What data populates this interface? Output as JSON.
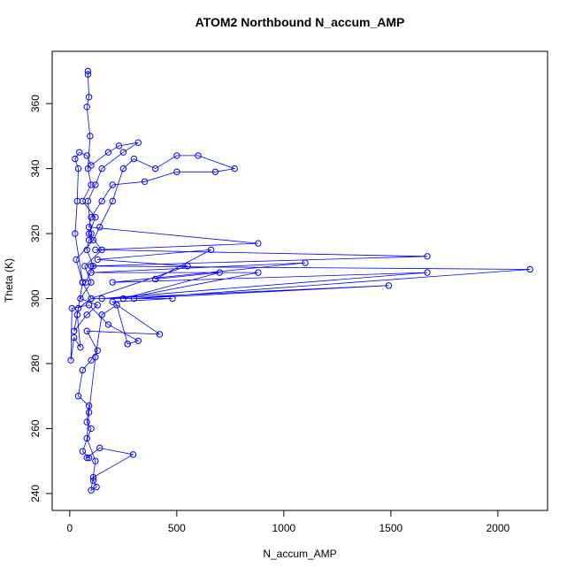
{
  "chart_data": {
    "type": "line",
    "title": "ATOM2 Northbound N_accum_AMP",
    "x_label": "N_accum_AMP",
    "y_label": "Theta (K)",
    "color": "#0000ff",
    "marker": "circle",
    "xlim": [
      -82,
      2232
    ],
    "ylim": [
      234.8,
      376.1
    ],
    "xticks": [
      0,
      500,
      1000,
      1500,
      2000
    ],
    "yticks": [
      240,
      260,
      280,
      300,
      320,
      340,
      360
    ],
    "x": [
      85,
      85,
      90,
      80,
      95,
      85,
      100,
      60,
      120,
      90,
      150,
      70,
      100,
      50,
      130,
      80,
      20,
      40,
      100,
      60,
      30,
      110,
      140,
      200,
      250,
      300,
      400,
      500,
      600,
      770,
      680,
      500,
      350,
      200,
      150,
      100,
      90,
      880,
      120,
      1670,
      100,
      2150,
      300,
      1490,
      150,
      1670,
      200,
      1100,
      100,
      880,
      250,
      700,
      400,
      660,
      130,
      550,
      100,
      480,
      200,
      420,
      80,
      130,
      100,
      60,
      40,
      90,
      80,
      100,
      60,
      90,
      80,
      140,
      296,
      110,
      110,
      125,
      100,
      120,
      80,
      90,
      120,
      150,
      220,
      270,
      270,
      320,
      180,
      90,
      10,
      5,
      20,
      50,
      35,
      60,
      25,
      35,
      40,
      25,
      45,
      80,
      100,
      180,
      230,
      320,
      250,
      150,
      120,
      85,
      100,
      90,
      80,
      110,
      75
    ],
    "values": [
      370,
      369,
      362,
      359,
      350,
      340,
      335,
      330,
      325,
      320,
      315,
      310,
      305,
      300,
      298,
      295,
      290,
      297,
      300,
      305,
      312,
      318,
      322,
      330,
      340,
      343,
      340,
      344,
      344,
      340,
      339,
      339,
      336,
      335,
      330,
      325,
      322,
      317,
      315,
      313,
      310,
      309,
      300,
      304,
      300,
      308,
      305,
      311,
      308,
      308,
      300,
      308,
      306,
      315,
      312,
      310,
      300,
      300,
      299,
      289,
      290,
      284,
      281,
      278,
      270,
      267,
      262,
      260,
      253,
      251,
      251,
      254,
      252,
      245,
      244,
      242,
      241,
      250,
      257,
      265,
      282,
      295,
      298,
      286,
      286,
      287,
      292,
      298,
      297,
      281,
      288,
      285,
      295,
      305,
      320,
      330,
      340,
      343,
      345,
      344,
      341,
      345,
      347,
      348,
      345,
      340,
      335,
      330,
      320,
      318,
      315,
      310,
      305
    ]
  }
}
